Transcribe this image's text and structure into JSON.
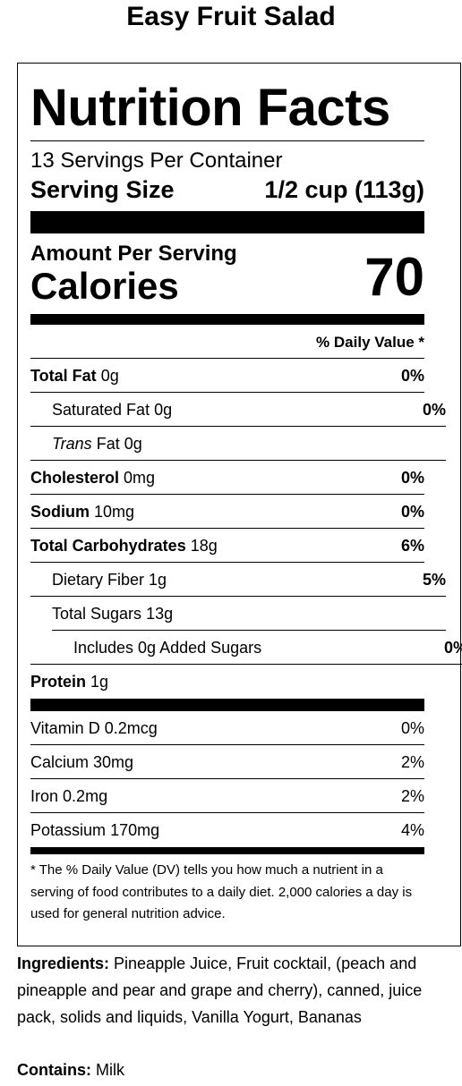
{
  "title": "Easy Fruit Salad",
  "label": {
    "heading": "Nutrition Facts",
    "servings": "13 Servings Per Container",
    "serving_size_label": "Serving Size",
    "serving_size": "1/2 cup (113g)",
    "amount_per_serving": "Amount Per Serving",
    "calories_label": "Calories",
    "calories": "70",
    "daily_value_header": "% Daily Value *",
    "nutrients": [
      {
        "name": "Total Fat",
        "amount": "0g",
        "dv": "0%",
        "level": 0
      },
      {
        "name": "Saturated Fat",
        "amount": "0g",
        "dv": "0%",
        "level": 1
      },
      {
        "name_italic": "Trans",
        "name": "Fat",
        "amount": "0g",
        "level": 1
      },
      {
        "name": "Cholesterol",
        "amount": "0mg",
        "dv": "0%",
        "level": 0
      },
      {
        "name": "Sodium",
        "amount": "10mg",
        "dv": "0%",
        "level": 0
      },
      {
        "name": "Total Carbohydrates",
        "amount": "18g",
        "dv": "6%",
        "level": 0
      },
      {
        "name": "Dietary Fiber",
        "amount": "1g",
        "dv": "5%",
        "level": 1
      },
      {
        "name": "Total Sugars",
        "amount": "13g",
        "level": 1
      },
      {
        "name": "Includes 0g Added Sugars",
        "dv": "0%",
        "level": 2
      },
      {
        "name": "Protein",
        "amount": "1g",
        "level": 0
      }
    ],
    "vitamins": [
      {
        "name": "Vitamin D",
        "amount": "0.2mcg",
        "dv": "0%"
      },
      {
        "name": "Calcium",
        "amount": "30mg",
        "dv": "2%"
      },
      {
        "name": "Iron",
        "amount": "0.2mg",
        "dv": "2%"
      },
      {
        "name": "Potassium",
        "amount": "170mg",
        "dv": "4%"
      }
    ],
    "footnote": "* The % Daily Value (DV) tells you how much a nutrient in a serving of food contributes to a daily diet. 2,000 calories a day is used for general nutrition advice."
  },
  "ingredients_label": "Ingredients:",
  "ingredients": "Pineapple Juice, Fruit cocktail, (peach and pineapple and pear and grape and cherry), canned, juice pack, solids and liquids, Vanilla Yogurt, Bananas",
  "contains_label": "Contains:",
  "contains": "Milk"
}
